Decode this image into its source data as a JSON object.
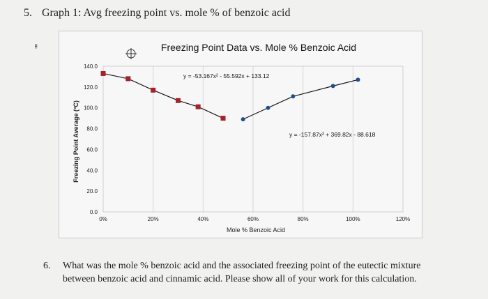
{
  "question5": {
    "number": "5.",
    "text": "Graph 1: Avg freezing point vs. mole % of benzoic acid"
  },
  "question6": {
    "number": "6.",
    "text": "What was the mole % benzoic acid and the associated freezing point of the eutectic mixture between benzoic acid and cinnamic acid. Please show all of your work for this calculation."
  },
  "chart_data": {
    "type": "scatter",
    "title": "Freezing Point Data vs. Mole % Benzoic Acid",
    "xlabel": "Mole % Benzoic Acid",
    "ylabel": "Freezing Point Average (ºC)",
    "xlim": [
      0,
      120
    ],
    "ylim": [
      0,
      140
    ],
    "x_tick_labels": [
      "0%",
      "20%",
      "40%",
      "60%",
      "80%",
      "100%",
      "120%"
    ],
    "y_tick_labels": [
      "0.0",
      "20.0",
      "40.0",
      "60.0",
      "80.0",
      "100.0",
      "120.0",
      "140.0"
    ],
    "grid": "vertical gridlines",
    "series": [
      {
        "color": "#a8202a",
        "marker": "square",
        "x": [
          0,
          10,
          20,
          30,
          38,
          48
        ],
        "y": [
          133,
          128,
          117,
          107,
          101,
          90
        ]
      },
      {
        "color": "#1f4f8c",
        "marker": "circle",
        "x": [
          56,
          66,
          76,
          92,
          102
        ],
        "y": [
          89,
          100,
          111,
          121,
          127
        ]
      }
    ],
    "annotations": [
      {
        "text": "y = -53.167x² - 55.592x + 133.12",
        "position": "upper-middle"
      },
      {
        "text": "y = -157.87x² + 369.82x - 88.618",
        "position": "right"
      }
    ]
  }
}
